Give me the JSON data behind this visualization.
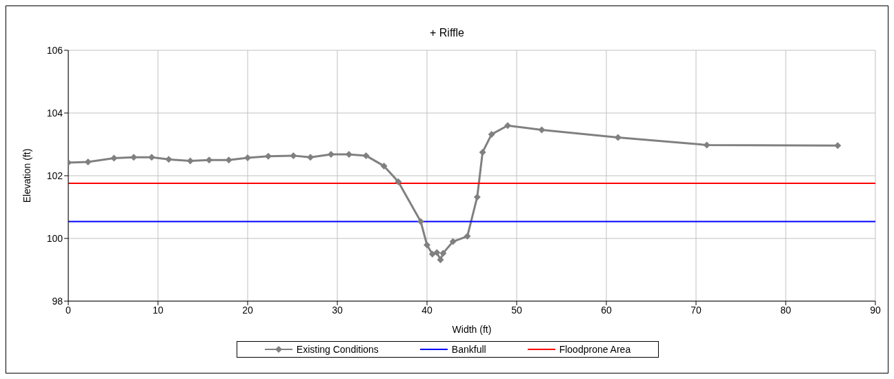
{
  "chart_data": {
    "type": "line",
    "title": "+ Riffle",
    "xlabel": "Width (ft)",
    "ylabel": "Elevation (ft)",
    "xlim": [
      0,
      90
    ],
    "xticks": [
      0,
      10,
      20,
      30,
      40,
      50,
      60,
      70,
      80,
      90
    ],
    "ylim": [
      98,
      106
    ],
    "yticks": [
      98,
      100,
      102,
      104,
      106
    ],
    "grid": true,
    "legend": "bottom",
    "marker": "diamond",
    "line_style": "solid",
    "series": [
      {
        "name": "Existing Conditions",
        "color": "#808080",
        "x": [
          0,
          2.2,
          5.1,
          7.3,
          9.3,
          11.2,
          13.6,
          15.7,
          17.9,
          20.0,
          22.3,
          25.1,
          27.0,
          29.3,
          31.3,
          33.2,
          35.2,
          36.8,
          39.3,
          40.0,
          40.6,
          41.1,
          41.5,
          41.8,
          42.9,
          44.5,
          45.6,
          46.2,
          47.2,
          49.0,
          52.8,
          61.3,
          71.2,
          85.8
        ],
        "values": [
          102.42,
          102.44,
          102.56,
          102.59,
          102.59,
          102.52,
          102.47,
          102.5,
          102.5,
          102.57,
          102.62,
          102.64,
          102.59,
          102.68,
          102.68,
          102.64,
          102.31,
          101.81,
          100.54,
          99.79,
          99.5,
          99.55,
          99.32,
          99.53,
          99.9,
          100.07,
          101.32,
          102.75,
          103.32,
          103.6,
          103.46,
          103.22,
          102.98,
          102.96
        ]
      },
      {
        "name": "Bankfull",
        "color": "#0000ff",
        "type": "line",
        "marker": "none",
        "x": [
          0,
          90
        ],
        "values": [
          100.54,
          100.54
        ]
      },
      {
        "name": "Floodprone Area",
        "color": "#ff0000",
        "type": "line",
        "marker": "none",
        "x": [
          0,
          90
        ],
        "values": [
          101.76,
          101.76
        ]
      }
    ]
  }
}
